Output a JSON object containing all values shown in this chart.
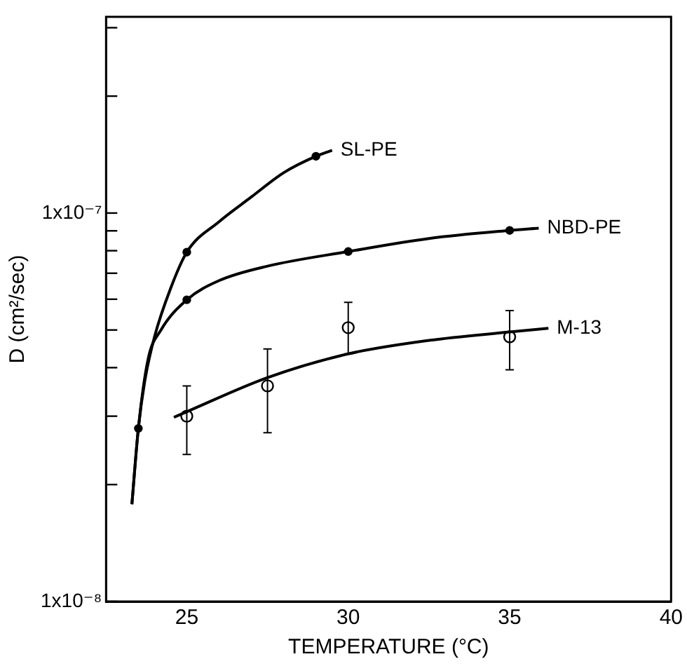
{
  "chart_data": {
    "type": "line",
    "xlabel": "TEMPERATURE (°C)",
    "ylabel": "D (cm²/sec)",
    "log": "y",
    "grid": false,
    "legend": false,
    "xlim": [
      22.5,
      40
    ],
    "xticks": [
      25,
      30,
      35,
      40
    ],
    "ylim": [
      1e-08,
      3.2e-07
    ],
    "yticks": [
      {
        "value": 1e-08,
        "label": "1x10⁻⁸"
      },
      {
        "value": 2e-08,
        "label": null
      },
      {
        "value": 3e-08,
        "label": null
      },
      {
        "value": 4e-08,
        "label": null
      },
      {
        "value": 5e-08,
        "label": null
      },
      {
        "value": 6e-08,
        "label": null
      },
      {
        "value": 7e-08,
        "label": null
      },
      {
        "value": 8e-08,
        "label": null
      },
      {
        "value": 9e-08,
        "label": null
      },
      {
        "value": 1e-07,
        "label": "1x10⁻⁷"
      },
      {
        "value": 2e-07,
        "label": null
      },
      {
        "value": 3e-07,
        "label": null
      }
    ],
    "series": [
      {
        "name": "SL-PE",
        "type": "line",
        "marker": "none",
        "color": "#000000",
        "x": [
          23.3,
          23.5,
          23.7,
          24,
          24.5,
          25,
          26,
          27,
          28,
          29,
          29.5
        ],
        "values": [
          1.78e-08,
          2.79e-08,
          3.7e-08,
          4.8e-08,
          6.4e-08,
          7.93e-08,
          9.5e-08,
          1.1e-07,
          1.27e-07,
          1.4e-07,
          1.45e-07
        ]
      },
      {
        "name": "NBD-PE",
        "type": "line",
        "marker": "none",
        "color": "#000000",
        "x": [
          23.3,
          23.5,
          23.8,
          24.2,
          25,
          26,
          27.5,
          30,
          32.5,
          35,
          35.9
        ],
        "values": [
          1.78e-08,
          2.79e-08,
          4.2e-08,
          5e-08,
          5.98e-08,
          6.7e-08,
          7.3e-08,
          7.96e-08,
          8.6e-08,
          9.02e-08,
          9.14e-08
        ]
      },
      {
        "name": "M-13",
        "type": "line",
        "marker": "none",
        "color": "#000000",
        "x": [
          24.6,
          25,
          27.5,
          30,
          32.5,
          35,
          36.2
        ],
        "values": [
          2.98e-08,
          3.08e-08,
          3.77e-08,
          4.34e-08,
          4.7e-08,
          4.94e-08,
          5.05e-08
        ]
      },
      {
        "type": "scatter",
        "marker": "circle",
        "color": "#000000",
        "x": [
          23.5,
          25,
          29
        ],
        "values": [
          2.79e-08,
          7.93e-08,
          1.4e-07
        ]
      },
      {
        "type": "scatter",
        "marker": "circle",
        "color": "#000000",
        "x": [
          25,
          30,
          35
        ],
        "values": [
          5.98e-08,
          7.96e-08,
          9.02e-08
        ]
      },
      {
        "type": "scatter",
        "marker": "circle",
        "color": "#000000",
        "x": [
          25,
          27.5,
          30,
          35
        ],
        "values": [
          3e-08,
          3.59e-08,
          5.07e-08,
          4.8e-08
        ],
        "errors": [
          [
            2.39e-08,
            3.59e-08
          ],
          [
            2.72e-08,
            4.47e-08
          ],
          [
            4.34e-08,
            5.89e-08
          ],
          [
            3.95e-08,
            5.61e-08
          ]
        ]
      }
    ]
  }
}
